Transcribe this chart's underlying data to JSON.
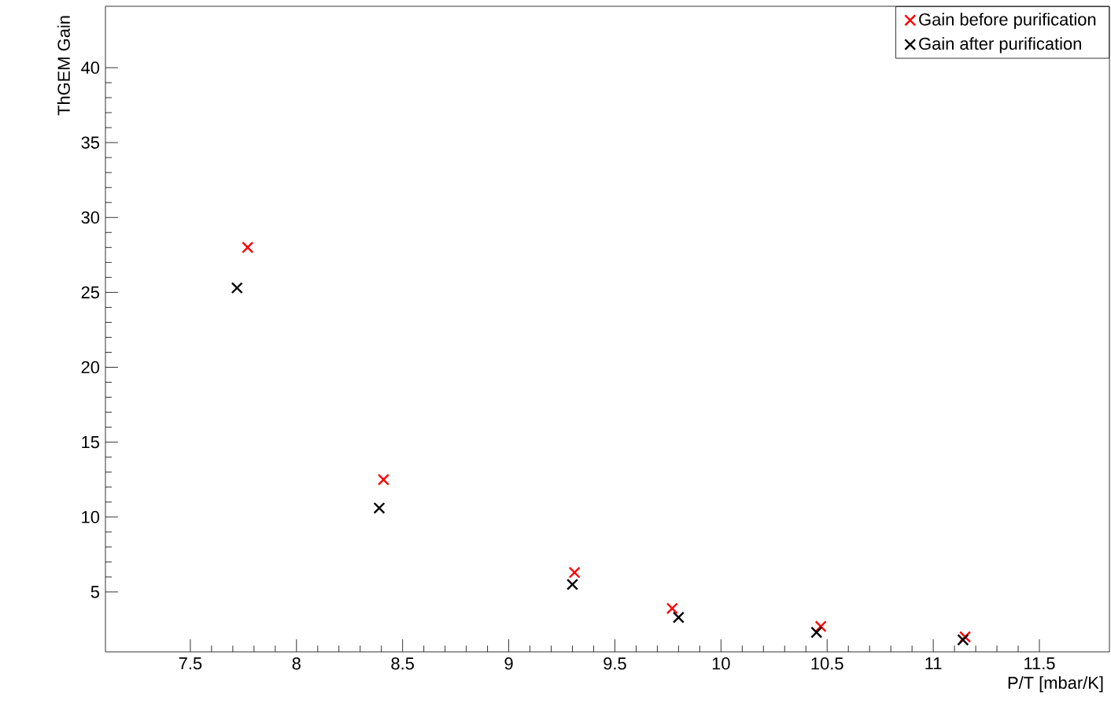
{
  "chart_data": {
    "type": "scatter",
    "xlabel": "P/T [mbar/K]",
    "ylabel": "ThGEM Gain",
    "marker": "cross",
    "legend": "top right",
    "grid": false,
    "xlim": [
      7.1,
      11.83
    ],
    "xticks": [
      7.5,
      8,
      8.5,
      9,
      9.5,
      10,
      10.5,
      11,
      11.5
    ],
    "ylim": [
      1,
      44.1
    ],
    "yticks": [
      5,
      10,
      15,
      20,
      25,
      30,
      35,
      40
    ],
    "series": [
      {
        "name": "Gain before purification",
        "color": "#ff0000",
        "x": [
          7.77,
          8.41,
          9.31,
          9.77,
          10.47,
          11.15
        ],
        "values": [
          28.0,
          12.5,
          6.3,
          3.9,
          2.7,
          2.0
        ]
      },
      {
        "name": "Gain after purification",
        "color": "#000000",
        "x": [
          7.72,
          8.39,
          9.3,
          9.8,
          10.45,
          11.14
        ],
        "values": [
          25.3,
          10.6,
          5.5,
          3.3,
          2.3,
          1.8
        ]
      }
    ]
  }
}
